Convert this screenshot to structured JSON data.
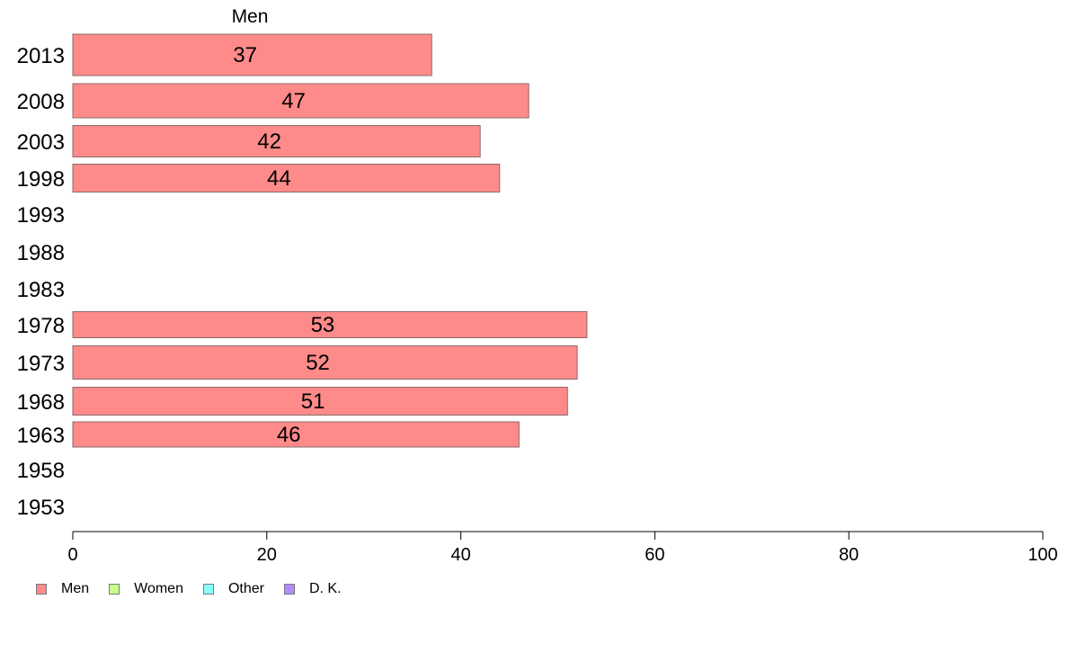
{
  "chart_data": {
    "type": "bar",
    "orientation": "horizontal",
    "facet_title": "Men",
    "categories": [
      "2013",
      "2008",
      "2003",
      "1998",
      "1993",
      "1988",
      "1983",
      "1978",
      "1973",
      "1968",
      "1963",
      "1958",
      "1953"
    ],
    "series": [
      {
        "name": "Men",
        "color": "#ff8a8a",
        "values": [
          37,
          47,
          42,
          44,
          null,
          null,
          null,
          53,
          52,
          51,
          46,
          null,
          null
        ],
        "labels": [
          "37",
          "47",
          "42",
          "44",
          "",
          "",
          "",
          "53",
          "52",
          "51",
          "46",
          "",
          ""
        ]
      }
    ],
    "xlim": [
      0,
      100
    ],
    "xticks": [
      0,
      20,
      40,
      60,
      80,
      100
    ],
    "xtick_labels": [
      "0",
      "20",
      "40",
      "60",
      "80",
      "100"
    ],
    "grid": false,
    "legend_position": "bottom-left"
  },
  "legend": {
    "items": [
      {
        "label": "Men",
        "color": "#ff8a8a"
      },
      {
        "label": "Women",
        "color": "#c8ff8a"
      },
      {
        "label": "Other",
        "color": "#8affff"
      },
      {
        "label": "D. K.",
        "color": "#b08aff"
      }
    ]
  }
}
